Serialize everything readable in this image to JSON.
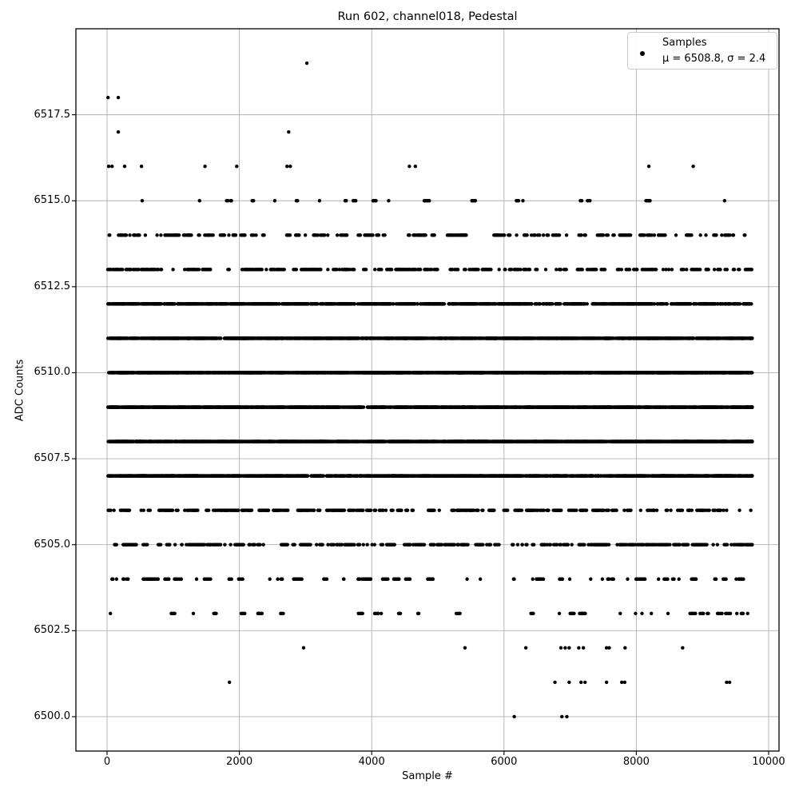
{
  "figure": {
    "title": "Run 602, channel018, Pedestal",
    "xlabel": "Sample #",
    "ylabel": "ADC Counts",
    "legend": {
      "entry_label": "Samples",
      "stats_label": "μ = 6508.8, σ = 2.4",
      "marker": "black-dot"
    }
  },
  "colors": {
    "background": "#ffffff",
    "grid": "#b0b0b0",
    "spine": "#000000",
    "marker": "#000000",
    "legend_border": "#cccccc",
    "text": "#000000"
  },
  "chart_data": {
    "type": "scatter",
    "title": "Run 602, channel018, Pedestal",
    "xlabel": "Sample #",
    "ylabel": "ADC Counts",
    "legend": [
      "Samples",
      "μ = 6508.8, σ = 2.4"
    ],
    "legend_position": "upper right",
    "stats": {
      "mu": 6508.8,
      "sigma": 2.4
    },
    "grid": true,
    "xlim": [
      -471,
      10157
    ],
    "ylim": [
      6499.0,
      6520.0
    ],
    "xticks": {
      "values": [
        0,
        2000,
        4000,
        6000,
        8000,
        10000
      ],
      "labels": [
        "0",
        "2000",
        "4000",
        "6000",
        "8000",
        "10000"
      ]
    },
    "yticks": {
      "values": [
        6500.0,
        6502.5,
        6505.0,
        6507.5,
        6510.0,
        6512.5,
        6515.0,
        6517.5
      ],
      "labels": [
        "6500.0",
        "6502.5",
        "6505.0",
        "6507.5",
        "6510.0",
        "6512.5",
        "6515.0",
        "6517.5"
      ]
    },
    "marker": {
      "shape": "circle",
      "color": "#000000",
      "radius": 2.2
    },
    "x_range": [
      10,
      9750
    ],
    "seed": 1337,
    "bands": [
      {
        "adc": 6519,
        "points": [
          3020
        ]
      },
      {
        "adc": 6518,
        "points": [
          15,
          170
        ]
      },
      {
        "adc": 6517,
        "points": [
          170,
          2745
        ]
      },
      {
        "adc": 6516,
        "points": [
          25,
          75,
          265,
          520,
          1480,
          1960,
          2720,
          2770,
          4570,
          4660,
          8190,
          8860
        ]
      },
      {
        "adc": 6515,
        "count": 48
      },
      {
        "adc": 6514,
        "count": 300
      },
      {
        "adc": 6513,
        "count": 430
      },
      {
        "adc": 6512,
        "count": 1350
      },
      {
        "adc": 6511,
        "count": 2350
      },
      {
        "adc": 6510,
        "count": 2850
      },
      {
        "adc": 6509,
        "count": 3000
      },
      {
        "adc": 6508,
        "count": 2900
      },
      {
        "adc": 6507,
        "count": 2400
      },
      {
        "adc": 6506,
        "count": 430
      },
      {
        "adc": 6505,
        "count": 470
      },
      {
        "adc": 6504,
        "count": 175
      },
      {
        "adc": 6503,
        "count": 92
      },
      {
        "adc": 6502,
        "points": [
          2970,
          5410,
          6330,
          6860,
          6925,
          6985,
          7130,
          7200,
          7550,
          7590,
          7830,
          8700
        ]
      },
      {
        "adc": 6501,
        "points": [
          1850,
          6770,
          6985,
          7165,
          7225,
          7550,
          7780,
          7825,
          9365,
          9410
        ]
      },
      {
        "adc": 6500,
        "points": [
          6155,
          6875,
          6950
        ]
      }
    ]
  }
}
